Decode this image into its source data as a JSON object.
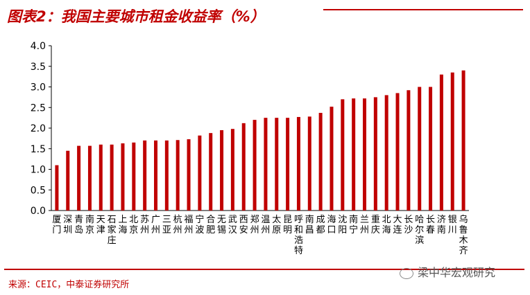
{
  "title": "图表2：我国主要城市租金收益率（%）",
  "source": "来源：CEIC，中泰证券研究所",
  "watermark": "梁中华宏观研究",
  "colors": {
    "bar": "#c00000",
    "accent": "#c00000"
  },
  "chart_data": {
    "type": "bar",
    "ylim": [
      0,
      4.0
    ],
    "yticks": [
      "0.0",
      "0.5",
      "1.0",
      "1.5",
      "2.0",
      "2.5",
      "3.0",
      "3.5",
      "4.0"
    ],
    "grid": false,
    "categories": [
      "厦门",
      "深圳",
      "青岛",
      "南京",
      "天津",
      "石家庄",
      "上海",
      "北京",
      "苏州",
      "广州",
      "三亚",
      "杭州",
      "福州",
      "宁波",
      "合肥",
      "无锡",
      "武汉",
      "西安",
      "郑州",
      "温州",
      "太原",
      "昆明",
      "呼和浩特",
      "南昌",
      "成都",
      "海口",
      "沈阳",
      "南宁",
      "兰州",
      "重庆",
      "北海",
      "大连",
      "长沙",
      "哈尔滨",
      "长春",
      "济南",
      "银川",
      "乌鲁木齐"
    ],
    "values": [
      1.1,
      1.45,
      1.57,
      1.57,
      1.6,
      1.6,
      1.63,
      1.65,
      1.7,
      1.7,
      1.7,
      1.71,
      1.73,
      1.82,
      1.88,
      1.95,
      1.98,
      2.12,
      2.2,
      2.25,
      2.25,
      2.25,
      2.27,
      2.28,
      2.37,
      2.52,
      2.7,
      2.72,
      2.72,
      2.75,
      2.8,
      2.85,
      2.92,
      3.0,
      3.0,
      3.3,
      3.35,
      3.4
    ]
  }
}
